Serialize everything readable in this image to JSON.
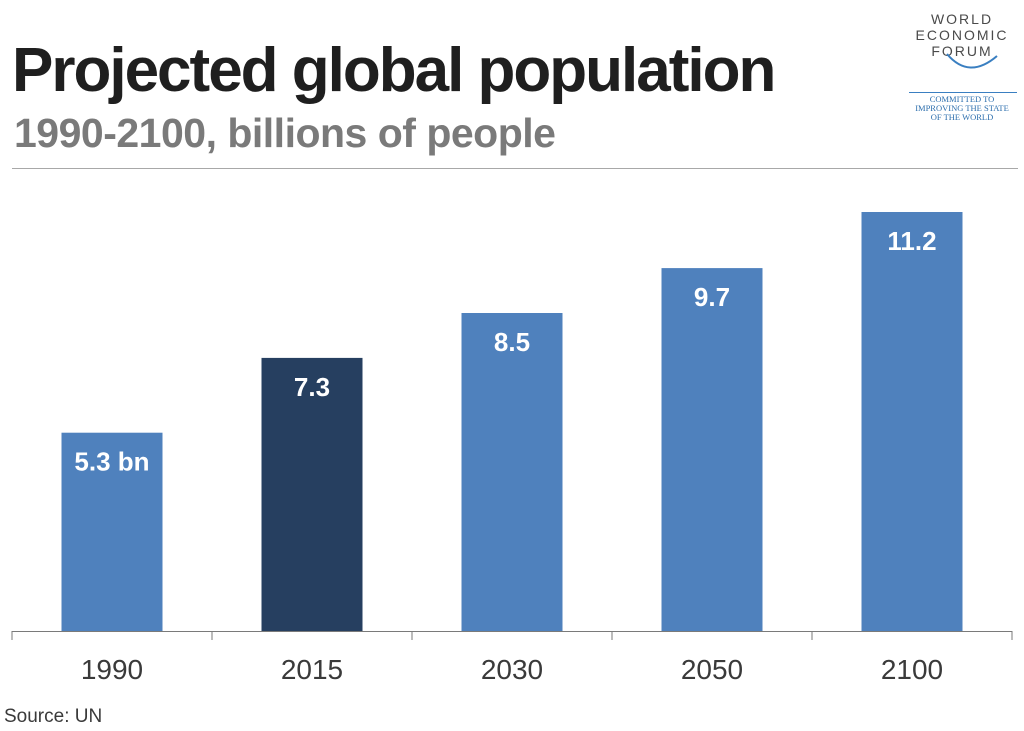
{
  "header": {
    "title": "Projected global population",
    "subtitle": "1990-2100, billions of people"
  },
  "logo": {
    "line1": "WORLD",
    "line2": "ECONOMIC",
    "line3": "FORUM",
    "tagline1": "COMMITTED TO",
    "tagline2": "IMPROVING THE STATE",
    "tagline3": "OF THE WORLD",
    "arc_color": "#3a7fc1"
  },
  "source": "Source: UN",
  "colors": {
    "bar": "#4f81bd",
    "highlight": "#263f60",
    "label": "#ffffff",
    "tick_label": "#3a3a3a",
    "axis": "#7a7a7a"
  },
  "chart_data": {
    "type": "bar",
    "title": "Projected global population",
    "subtitle": "1990-2100, billions of people",
    "categories": [
      "1990",
      "2015",
      "2030",
      "2050",
      "2100"
    ],
    "values": [
      5.3,
      7.3,
      8.5,
      9.7,
      11.2
    ],
    "data_labels": [
      "5.3 bn",
      "7.3",
      "8.5",
      "9.7",
      "11.2"
    ],
    "highlight_index": 1,
    "ylim": [
      0,
      11.2
    ],
    "xlabel": "",
    "ylabel": "",
    "grid": false,
    "legend": "none"
  }
}
